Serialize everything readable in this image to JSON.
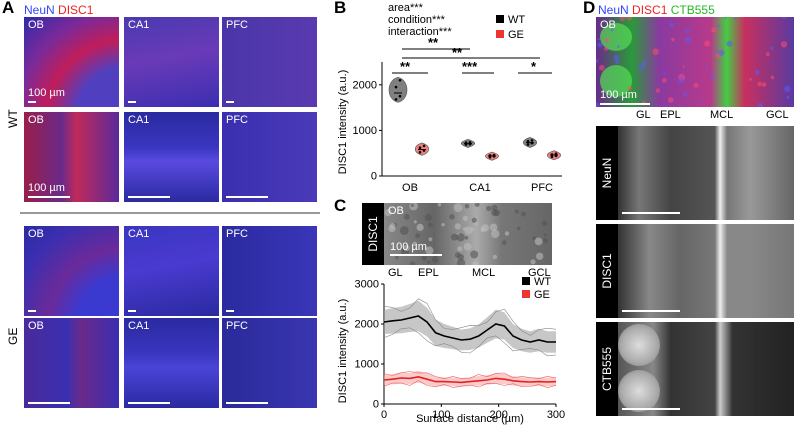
{
  "panelA": {
    "letter": "A",
    "legend": {
      "neun": "NeuN",
      "disc1": "DISC1"
    },
    "row_labels": {
      "wt": "WT",
      "ge": "GE"
    },
    "tiles": [
      {
        "label": "OB"
      },
      {
        "label": "CA1"
      },
      {
        "label": "PFC"
      },
      {
        "label": "OB"
      },
      {
        "label": "CA1"
      },
      {
        "label": "PFC"
      },
      {
        "label": "OB"
      },
      {
        "label": "CA1"
      },
      {
        "label": "PFC"
      },
      {
        "label": "OB"
      },
      {
        "label": "CA1"
      },
      {
        "label": "PFC"
      }
    ],
    "scale_top": "100 µm",
    "scale_bottom": "100 µm"
  },
  "panelB": {
    "letter": "B",
    "stats": [
      "area***",
      "condition***",
      "interaction***"
    ],
    "brackets": {
      "top1": "**",
      "top2": "**",
      "ob": "**",
      "ca1": "***",
      "pfc": "*"
    },
    "legend": [
      {
        "name": "WT",
        "color": "#000000"
      },
      {
        "name": "GE",
        "color": "#ee3333"
      }
    ],
    "chart_data": {
      "type": "violin",
      "categories": [
        "OB",
        "CA1",
        "PFC"
      ],
      "ylabel": "DISC1 intensity (a.u.)",
      "ylim": [
        0,
        2500
      ],
      "yticks": [
        0,
        1000,
        2000
      ],
      "series": [
        {
          "name": "WT",
          "values": [
            1820,
            710,
            730
          ],
          "points": [
            [
              1680,
              1750,
              1950,
              2100
            ],
            [
              690,
              700,
              730,
              740
            ],
            [
              690,
              720,
              760,
              780
            ]
          ]
        },
        {
          "name": "GE",
          "values": [
            580,
            440,
            460
          ],
          "points": [
            [
              520,
              560,
              620,
              660
            ],
            [
              410,
              430,
              450,
              460
            ],
            [
              420,
              440,
              470,
              490
            ]
          ]
        }
      ]
    }
  },
  "panelC": {
    "letter": "C",
    "strip_label": "DISC1",
    "strip_tile_label": "OB",
    "strip_scale": "100 µm",
    "layers": [
      "GL",
      "EPL",
      "MCL",
      "GCL"
    ],
    "legend": [
      {
        "name": "WT",
        "color": "#000000"
      },
      {
        "name": "GE",
        "color": "#ee3333"
      }
    ],
    "chart_data": {
      "type": "line",
      "xlabel": "Surface distance (µm)",
      "ylabel": "DISC1 intensity (a.u.)",
      "xlim": [
        0,
        300
      ],
      "ylim": [
        0,
        3000
      ],
      "xticks": [
        0,
        100,
        200,
        300
      ],
      "yticks": [
        0,
        1000,
        2000,
        3000
      ],
      "x": [
        0,
        15,
        30,
        45,
        60,
        75,
        90,
        105,
        120,
        135,
        150,
        165,
        180,
        195,
        210,
        225,
        240,
        255,
        270,
        285,
        300
      ],
      "series": [
        {
          "name": "WT",
          "values": [
            2050,
            2080,
            2100,
            2150,
            2200,
            2050,
            1780,
            1700,
            1650,
            1600,
            1620,
            1700,
            1850,
            2000,
            1950,
            1700,
            1600,
            1550,
            1600,
            1550,
            1550
          ],
          "band": [
            300,
            320,
            330,
            350,
            380,
            360,
            330,
            300,
            280,
            260,
            270,
            290,
            320,
            360,
            340,
            300,
            280,
            270,
            280,
            270,
            270
          ]
        },
        {
          "name": "GE",
          "values": [
            600,
            620,
            650,
            640,
            680,
            620,
            560,
            560,
            550,
            540,
            560,
            580,
            600,
            640,
            620,
            580,
            560,
            550,
            560,
            550,
            560
          ],
          "band": [
            120,
            130,
            140,
            140,
            150,
            140,
            120,
            110,
            110,
            110,
            110,
            120,
            120,
            130,
            130,
            120,
            110,
            110,
            110,
            110,
            110
          ]
        }
      ]
    }
  },
  "panelD": {
    "letter": "D",
    "legend": {
      "neun": "NeuN",
      "disc1": "DISC1",
      "ctb": "CTB555"
    },
    "top_label": "OB",
    "scale": "100 µm",
    "layers": [
      "GL",
      "EPL",
      "MCL",
      "GCL"
    ],
    "channels": [
      "NeuN",
      "DISC1",
      "CTB555"
    ],
    "colors": {
      "neun": "#3344ff",
      "disc1": "#ee2222",
      "ctb": "#22bb22"
    }
  }
}
